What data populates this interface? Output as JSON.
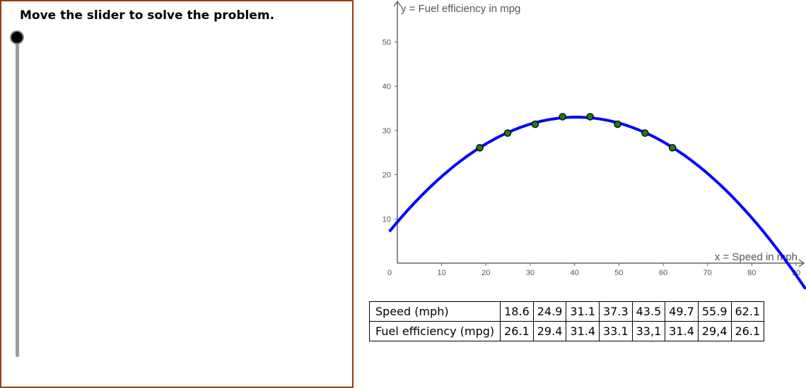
{
  "instruction": "Move the slider to solve the problem.",
  "slider": {
    "value_fraction": 0
  },
  "chart_data": {
    "type": "scatter",
    "xlabel": "x = Speed in mph",
    "ylabel": "y = Fuel efficiency in mpg",
    "xlim": [
      0,
      90
    ],
    "ylim": [
      0,
      55
    ],
    "x_ticks": [
      0,
      10,
      20,
      30,
      40,
      50,
      60,
      70,
      80,
      90
    ],
    "y_ticks": [
      10,
      20,
      30,
      40,
      50
    ],
    "grid": false,
    "points": [
      {
        "x": 18.6,
        "y": 26.1
      },
      {
        "x": 24.9,
        "y": 29.4
      },
      {
        "x": 31.1,
        "y": 31.4
      },
      {
        "x": 37.3,
        "y": 33.1
      },
      {
        "x": 43.5,
        "y": 33.1
      },
      {
        "x": 49.7,
        "y": 31.4
      },
      {
        "x": 55.9,
        "y": 29.4
      },
      {
        "x": 62.1,
        "y": 26.1
      }
    ],
    "fit_curve": {
      "type": "quadratic",
      "vertex_x": 40.4,
      "vertex_y": 33.0,
      "a": -0.01452
    },
    "colors": {
      "curve": "#0000ff",
      "points": "#1f7a1f",
      "axes": "#666666"
    }
  },
  "table": {
    "rows": [
      {
        "label": "Speed (mph)",
        "values": [
          "18.6",
          "24.9",
          "31.1",
          "37.3",
          "43.5",
          "49.7",
          "55.9",
          "62.1"
        ]
      },
      {
        "label": "Fuel efficiency (mpg)",
        "values": [
          "26.1",
          "29.4",
          "31.4",
          "33.1",
          "33,1",
          "31.4",
          "29,4",
          "26.1"
        ]
      }
    ]
  }
}
